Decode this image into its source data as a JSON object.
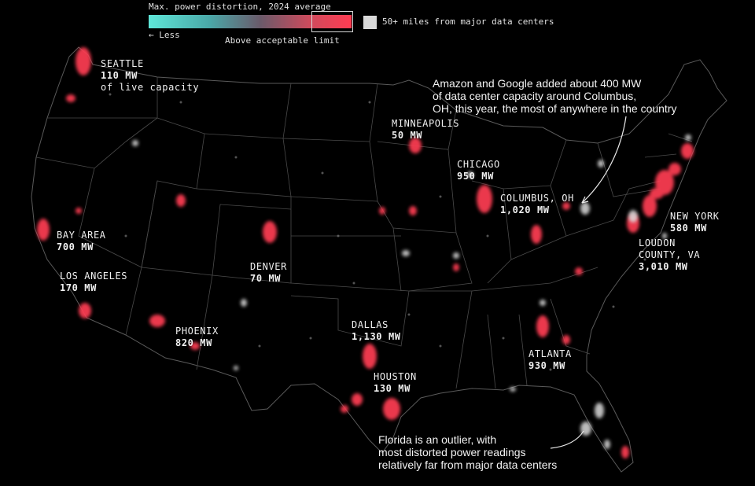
{
  "legend": {
    "title": "Max. power distortion, 2024 average",
    "less_label": "← Less",
    "above_label": "Above acceptable limit",
    "far_label": "50+ miles from major data centers",
    "gradient_low_color": "#5ee6d8",
    "gradient_high_color": "#ff3c52",
    "far_color": "#d9d9d9"
  },
  "cities": [
    {
      "id": "seattle",
      "name": "SEATTLE",
      "mw": "110 MW",
      "sub": "of live capacity"
    },
    {
      "id": "minneapolis",
      "name": "MINNEAPOLIS",
      "mw": "50 MW"
    },
    {
      "id": "chicago",
      "name": "CHICAGO",
      "mw": "950 MW"
    },
    {
      "id": "columbus",
      "name": "COLUMBUS, OH",
      "mw": "1,020 MW"
    },
    {
      "id": "new-york",
      "name": "NEW YORK",
      "mw": "580 MW"
    },
    {
      "id": "loudon",
      "name": "LOUDON",
      "name2": "COUNTY, VA",
      "mw": "3,010 MW"
    },
    {
      "id": "bay-area",
      "name": "BAY AREA",
      "mw": "700 MW"
    },
    {
      "id": "los-angeles",
      "name": "LOS ANGELES",
      "mw": "170 MW"
    },
    {
      "id": "denver",
      "name": "DENVER",
      "mw": "70 MW"
    },
    {
      "id": "phoenix",
      "name": "PHOENIX",
      "mw": "820 MW"
    },
    {
      "id": "dallas",
      "name": "DALLAS",
      "mw": "1,130 MW"
    },
    {
      "id": "houston",
      "name": "HOUSTON",
      "mw": "130 MW"
    },
    {
      "id": "atlanta",
      "name": "ATLANTA",
      "mw": "930 MW"
    }
  ],
  "annotations": {
    "columbus_note": [
      "Amazon and Google added about 400 MW",
      "of data center capacity around Columbus,",
      "OH, this year, the most of anywhere in the country"
    ],
    "florida_note": [
      "Florida is an outlier, with",
      "most distorted power readings",
      "relatively far from major data centers"
    ]
  },
  "colors": {
    "background": "#000000",
    "hotspot": "#ff3c52",
    "borders": "#5a5a5a"
  }
}
